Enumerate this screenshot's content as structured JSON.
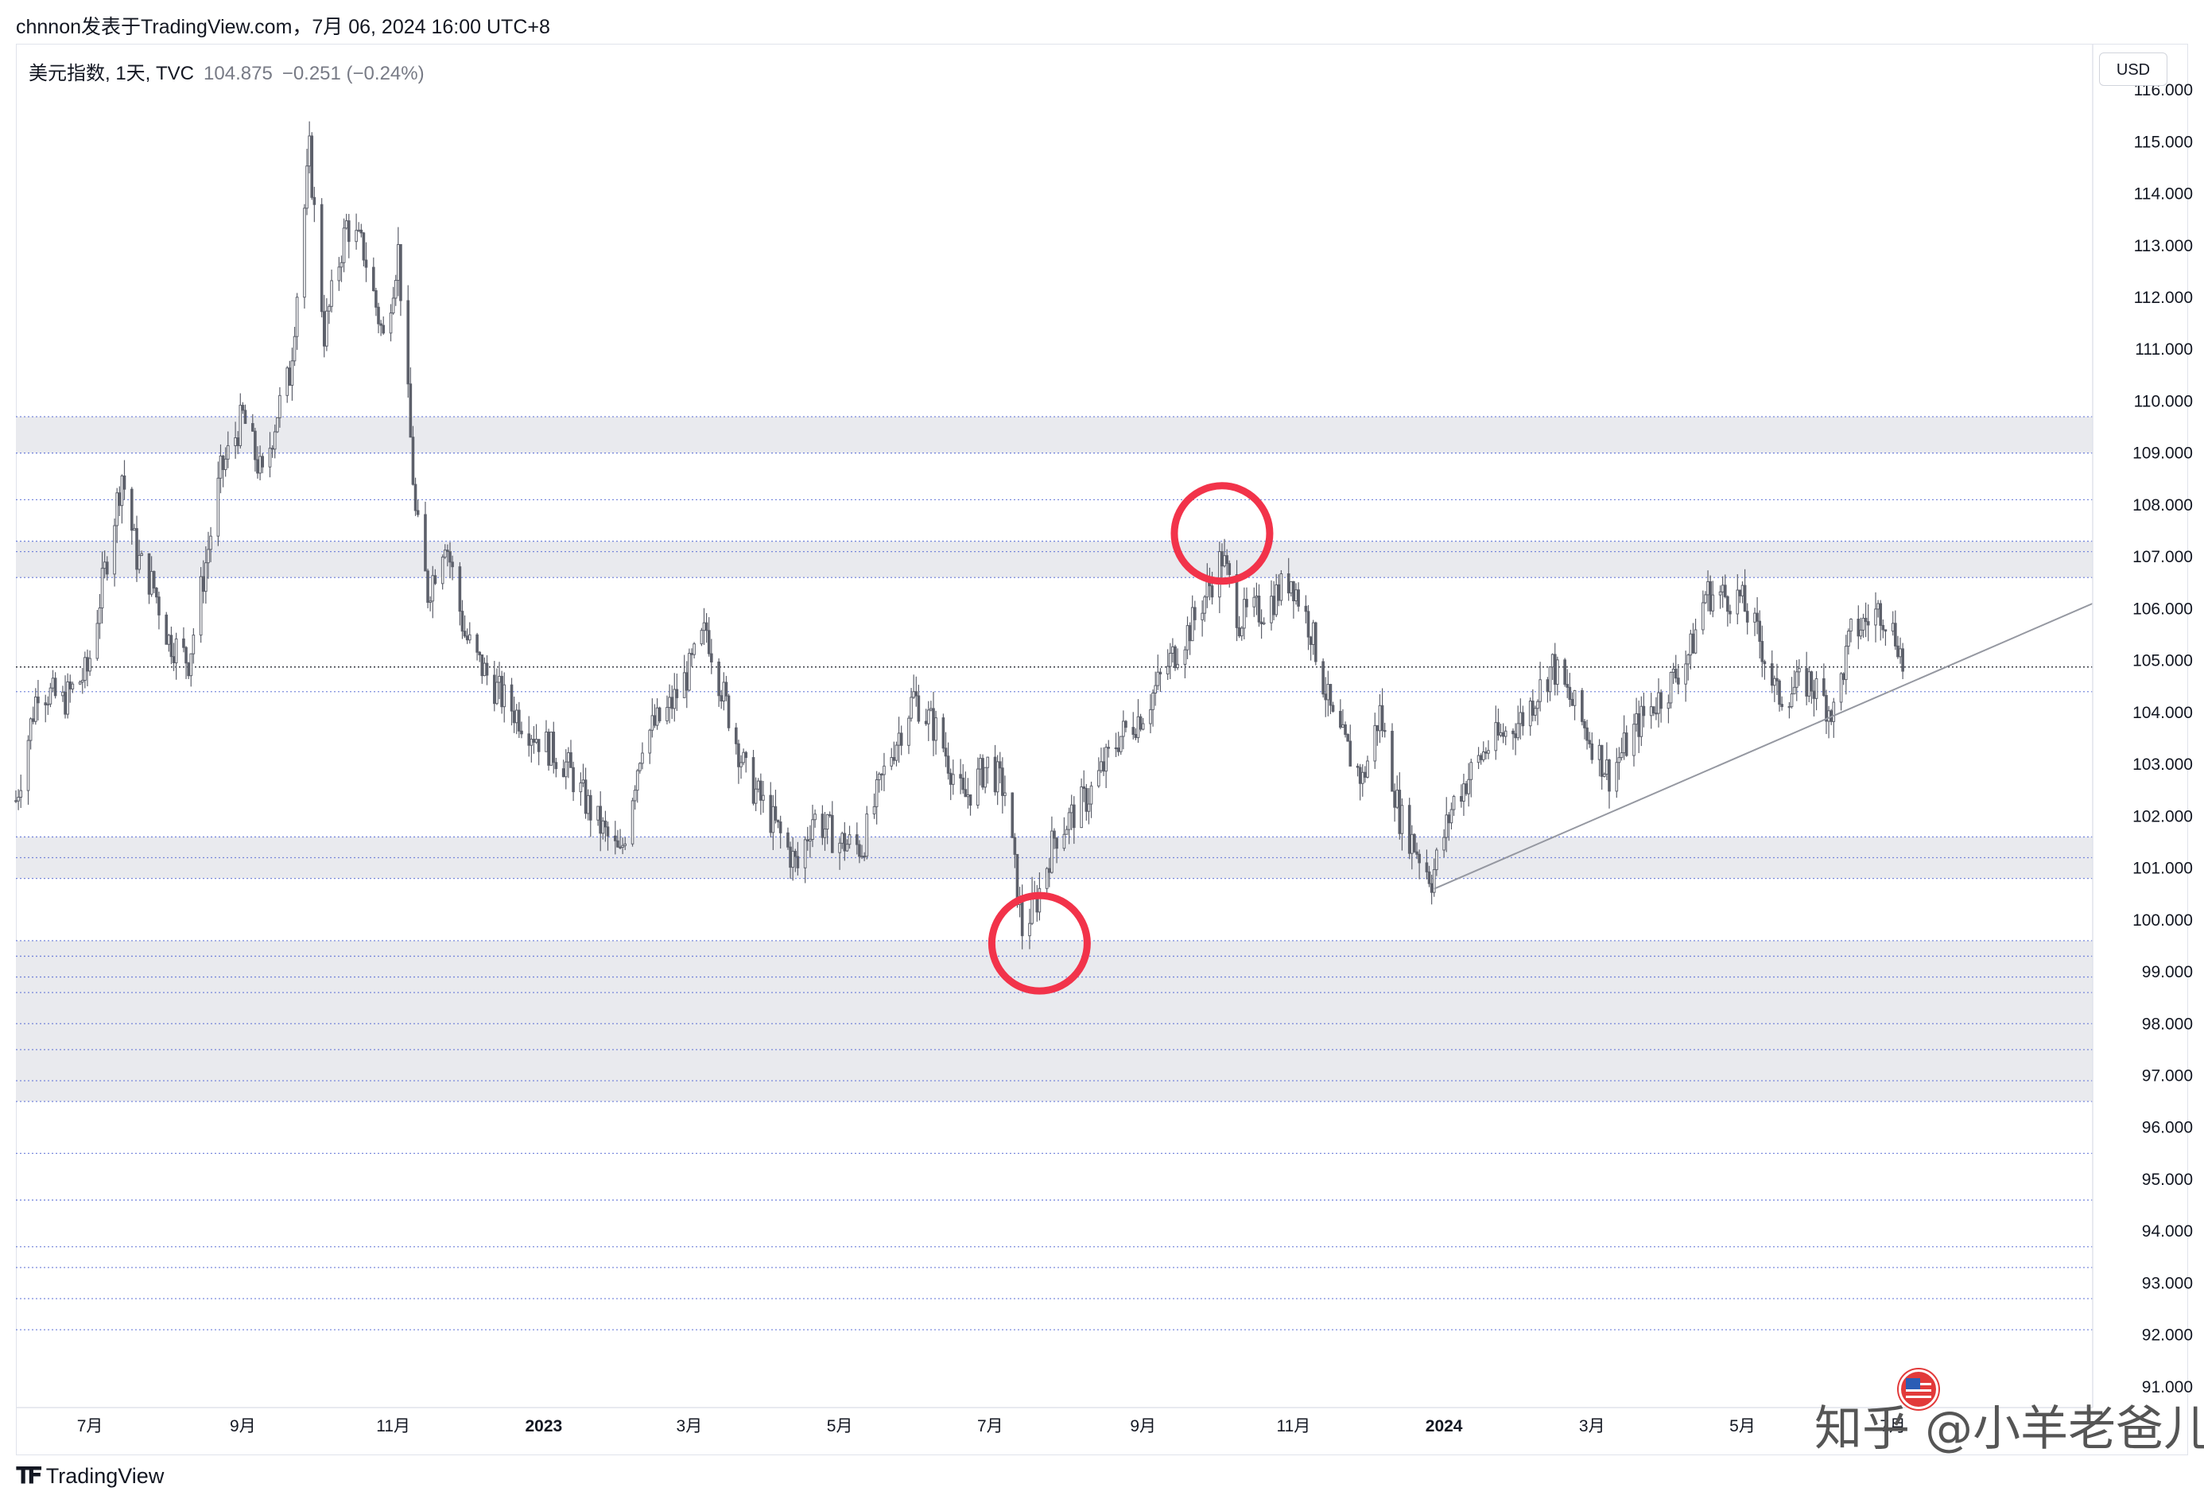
{
  "header": {
    "credit": "chnnon发表于TradingView.com，7月 06, 2024 16:00 UTC+8"
  },
  "legend": {
    "symbol": "美元指数, 1天, TVC",
    "price": "104.875",
    "change": "−0.251 (−0.24%)"
  },
  "currency_button": "USD",
  "footer": {
    "logo_text": "TradingView"
  },
  "watermark": "知乎 @小羊老爸儿",
  "colors": {
    "candle": "#5d606b",
    "zone_fill": "#e9eaee",
    "level_line": "#5b6fd6",
    "circle": "#f2334a",
    "trendline": "#9598a1",
    "price_line": "#131722"
  },
  "chart_data": {
    "type": "candlestick",
    "symbol": "TVC:DXY",
    "interval": "1D",
    "currency": "USD",
    "ylim": [
      90.6,
      116.2
    ],
    "x_range": [
      "2022-06-01",
      "2024-09-20"
    ],
    "y_ticks": [
      "116.000",
      "115.000",
      "114.000",
      "113.000",
      "112.000",
      "111.000",
      "110.000",
      "109.000",
      "108.000",
      "107.000",
      "106.000",
      "105.000",
      "104.000",
      "103.000",
      "102.000",
      "101.000",
      "100.000",
      "99.000",
      "98.000",
      "97.000",
      "96.000",
      "95.000",
      "94.000",
      "93.000",
      "92.000",
      "91.000"
    ],
    "x_ticks": [
      {
        "label": "7月",
        "date": "2022-07-01",
        "bold": false
      },
      {
        "label": "9月",
        "date": "2022-09-01",
        "bold": false
      },
      {
        "label": "11月",
        "date": "2022-11-01",
        "bold": false
      },
      {
        "label": "2023",
        "date": "2023-01-01",
        "bold": true
      },
      {
        "label": "3月",
        "date": "2023-03-01",
        "bold": false
      },
      {
        "label": "5月",
        "date": "2023-05-01",
        "bold": false
      },
      {
        "label": "7月",
        "date": "2023-07-01",
        "bold": false
      },
      {
        "label": "9月",
        "date": "2023-09-01",
        "bold": false
      },
      {
        "label": "11月",
        "date": "2023-11-01",
        "bold": false
      },
      {
        "label": "2024",
        "date": "2024-01-01",
        "bold": true
      },
      {
        "label": "3月",
        "date": "2024-03-01",
        "bold": false
      },
      {
        "label": "5月",
        "date": "2024-05-01",
        "bold": false
      },
      {
        "label": "7月",
        "date": "2024-07-01",
        "bold": false
      }
    ],
    "path": [
      [
        "2022-06-01",
        102.3
      ],
      [
        "2022-06-10",
        104.5
      ],
      [
        "2022-06-20",
        104.2
      ],
      [
        "2022-06-30",
        104.8
      ],
      [
        "2022-07-08",
        107.0
      ],
      [
        "2022-07-14",
        108.6
      ],
      [
        "2022-07-20",
        107.0
      ],
      [
        "2022-07-27",
        106.4
      ],
      [
        "2022-08-02",
        105.4
      ],
      [
        "2022-08-10",
        105.0
      ],
      [
        "2022-08-16",
        106.6
      ],
      [
        "2022-08-23",
        108.6
      ],
      [
        "2022-09-01",
        109.7
      ],
      [
        "2022-09-09",
        108.5
      ],
      [
        "2022-09-15",
        109.8
      ],
      [
        "2022-09-20",
        110.5
      ],
      [
        "2022-09-28",
        114.8
      ],
      [
        "2022-10-04",
        111.3
      ],
      [
        "2022-10-13",
        113.4
      ],
      [
        "2022-10-20",
        112.9
      ],
      [
        "2022-10-28",
        111.2
      ],
      [
        "2022-11-03",
        112.9
      ],
      [
        "2022-11-10",
        107.8
      ],
      [
        "2022-11-15",
        106.3
      ],
      [
        "2022-11-22",
        107.4
      ],
      [
        "2022-11-30",
        105.5
      ],
      [
        "2022-12-05",
        105.0
      ],
      [
        "2022-12-15",
        104.3
      ],
      [
        "2022-12-30",
        103.5
      ],
      [
        "2023-01-10",
        103.0
      ],
      [
        "2023-01-20",
        102.1
      ],
      [
        "2023-02-01",
        101.2
      ],
      [
        "2023-02-10",
        103.5
      ],
      [
        "2023-02-20",
        104.0
      ],
      [
        "2023-03-01",
        104.8
      ],
      [
        "2023-03-08",
        105.6
      ],
      [
        "2023-03-15",
        104.3
      ],
      [
        "2023-03-24",
        102.8
      ],
      [
        "2023-04-05",
        101.8
      ],
      [
        "2023-04-14",
        101.0
      ],
      [
        "2023-04-20",
        102.0
      ],
      [
        "2023-05-01",
        101.5
      ],
      [
        "2023-05-10",
        101.4
      ],
      [
        "2023-05-20",
        103.0
      ],
      [
        "2023-05-31",
        104.3
      ],
      [
        "2023-06-10",
        103.6
      ],
      [
        "2023-06-20",
        102.3
      ],
      [
        "2023-06-30",
        103.0
      ],
      [
        "2023-07-07",
        102.5
      ],
      [
        "2023-07-14",
        99.8
      ],
      [
        "2023-07-20",
        100.4
      ],
      [
        "2023-07-27",
        101.6
      ],
      [
        "2023-08-10",
        102.4
      ],
      [
        "2023-08-22",
        103.5
      ],
      [
        "2023-09-01",
        104.0
      ],
      [
        "2023-09-12",
        105.0
      ],
      [
        "2023-09-22",
        105.8
      ],
      [
        "2023-10-03",
        107.0
      ],
      [
        "2023-10-10",
        105.8
      ],
      [
        "2023-10-20",
        106.0
      ],
      [
        "2023-10-31",
        106.6
      ],
      [
        "2023-11-08",
        105.6
      ],
      [
        "2023-11-17",
        103.8
      ],
      [
        "2023-11-29",
        102.7
      ],
      [
        "2023-12-06",
        104.0
      ],
      [
        "2023-12-14",
        102.0
      ],
      [
        "2023-12-27",
        100.8
      ],
      [
        "2024-01-05",
        102.3
      ],
      [
        "2024-01-18",
        103.3
      ],
      [
        "2024-02-02",
        103.9
      ],
      [
        "2024-02-14",
        104.9
      ],
      [
        "2024-02-26",
        103.8
      ],
      [
        "2024-03-08",
        102.8
      ],
      [
        "2024-03-20",
        103.8
      ],
      [
        "2024-04-01",
        104.5
      ],
      [
        "2024-04-10",
        105.2
      ],
      [
        "2024-04-16",
        106.3
      ],
      [
        "2024-04-30",
        106.2
      ],
      [
        "2024-05-08",
        105.4
      ],
      [
        "2024-05-15",
        104.3
      ],
      [
        "2024-05-28",
        104.6
      ],
      [
        "2024-06-07",
        104.0
      ],
      [
        "2024-06-14",
        105.5
      ],
      [
        "2024-06-26",
        106.0
      ],
      [
        "2024-07-03",
        105.4
      ],
      [
        "2024-07-05",
        104.9
      ]
    ],
    "last_price": 104.875,
    "price_line": 104.875,
    "zones": [
      [
        109.0,
        109.7
      ],
      [
        106.6,
        107.3
      ],
      [
        100.8,
        101.6
      ],
      [
        96.5,
        99.6
      ]
    ],
    "levels": [
      109.7,
      109.0,
      108.1,
      107.3,
      107.1,
      106.6,
      104.4,
      101.6,
      101.2,
      100.8,
      99.6,
      99.3,
      98.9,
      98.6,
      98.0,
      97.5,
      96.9,
      96.5,
      95.5,
      94.6,
      93.7,
      93.3,
      92.7,
      92.1
    ],
    "trendline": [
      [
        "2023-12-28",
        100.6
      ],
      [
        "2024-09-20",
        106.1
      ]
    ],
    "circles": [
      {
        "date": "2023-07-21",
        "price": 99.55
      },
      {
        "date": "2023-10-03",
        "price": 107.45
      }
    ]
  }
}
